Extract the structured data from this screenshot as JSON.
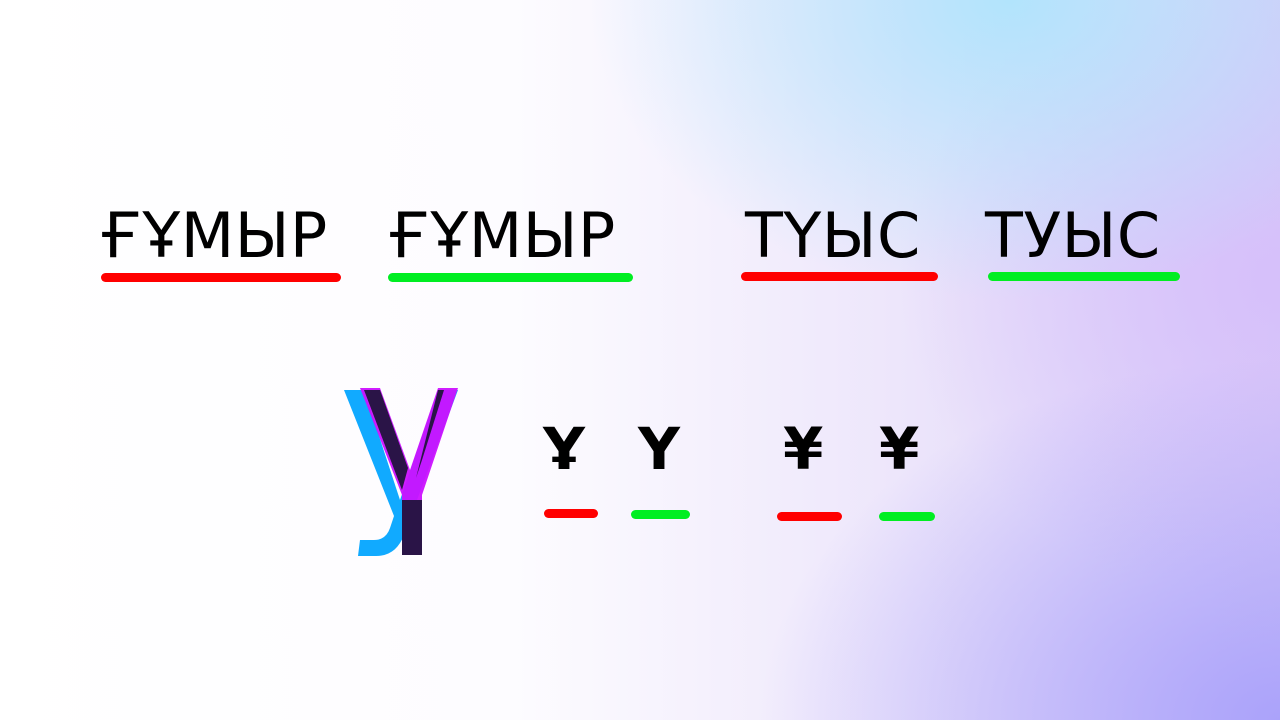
{
  "words": {
    "word1": "ҒҰМЫР",
    "word2": "ҒҰМЫР",
    "word3": "ТҮЫС",
    "word4": "ТУЫС"
  },
  "glyphs": {
    "g1": "Ұ",
    "g2": "Ү",
    "g3": "¥",
    "g4": "¥"
  },
  "colors": {
    "wrong": "#ff0000",
    "right": "#00ee22",
    "overlay_cyan": "#11aaff",
    "overlay_magenta": "#cc11ff"
  },
  "icons": {
    "big_overlay": "overlapping-letter-u-icon"
  }
}
